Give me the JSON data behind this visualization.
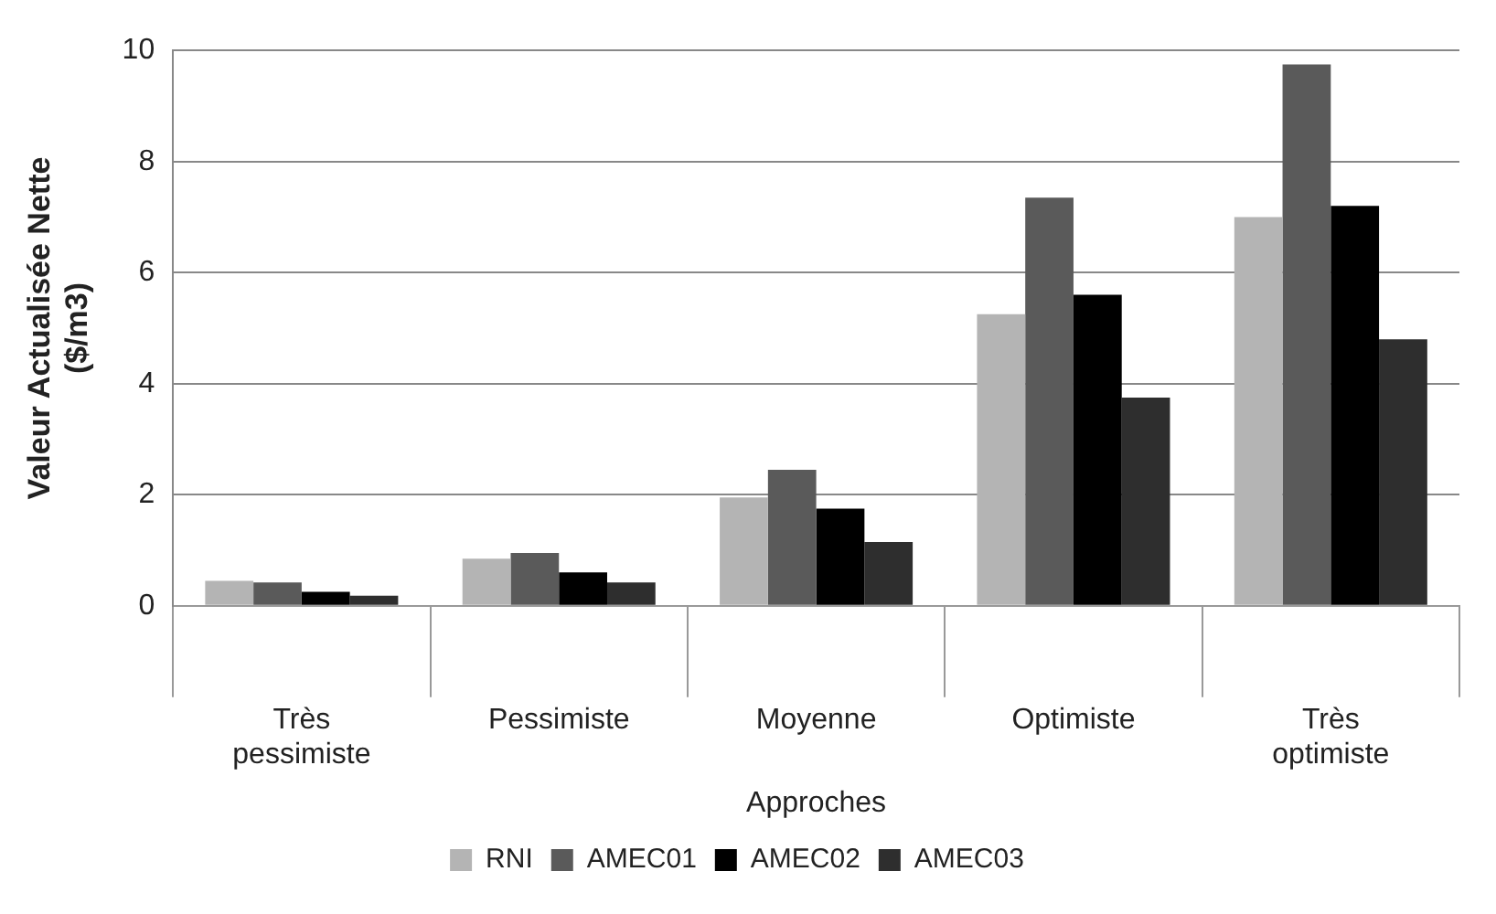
{
  "chart_data": {
    "type": "bar",
    "xlabel": "Approches",
    "ylabel": "Valeur Actualisée Nette ($/m3)",
    "categories": [
      "Très pessimiste",
      "Pessimiste",
      "Moyenne",
      "Optimiste",
      "Très optimiste"
    ],
    "series": [
      {
        "name": "RNI",
        "color": "#b4b4b4",
        "values": [
          0.45,
          0.85,
          1.95,
          5.25,
          7.0
        ]
      },
      {
        "name": "AMEC01",
        "color": "#5a5a5a",
        "values": [
          0.42,
          0.95,
          2.45,
          7.35,
          9.75
        ]
      },
      {
        "name": "AMEC02",
        "color": "#000000",
        "values": [
          0.25,
          0.6,
          1.75,
          5.6,
          7.2
        ]
      },
      {
        "name": "AMEC03",
        "color": "#2e2e2e",
        "values": [
          0.18,
          0.42,
          1.15,
          3.75,
          4.8
        ]
      }
    ],
    "ylim": [
      0,
      10
    ],
    "yticks": [
      0,
      2,
      4,
      6,
      8,
      10
    ],
    "grid": "y",
    "legend": "bottom"
  }
}
